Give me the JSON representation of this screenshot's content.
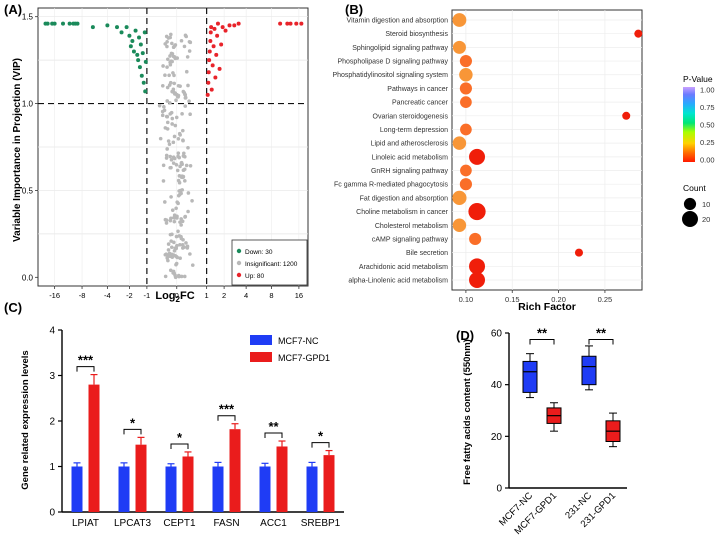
{
  "panels": {
    "a": "(A)",
    "b": "(B)",
    "c": "(C)",
    "d": "(D)"
  },
  "colors": {
    "down": "#1a8a5a",
    "insignificant": "#b8b8b8",
    "up": "#e8232a",
    "blue_bar": "#1f3cf5",
    "red_bar": "#ea1c1c"
  },
  "chart_data": [
    {
      "id": "A",
      "type": "scatter",
      "title": "",
      "xlabel_main": "Log",
      "xlabel_sub": "2",
      "xlabel_tail": "FC",
      "ylabel": "Variable Importance in Projection (VIP)",
      "x_ticks": [
        "-16",
        "-8",
        "-4",
        "-2",
        "-1",
        "0",
        "1",
        "2",
        "4",
        "8",
        "16"
      ],
      "y_ticks": [
        "0.0",
        "0.5",
        "1.0",
        "1.5"
      ],
      "ylim": [
        -0.05,
        1.55
      ],
      "vip_threshold": 1.0,
      "fc_thresholds": [
        -1,
        1
      ],
      "legend": [
        {
          "label": "Down: 30",
          "group": "down"
        },
        {
          "label": "Insignificant: 1200",
          "group": "insignificant"
        },
        {
          "label": "Up: 80",
          "group": "up"
        }
      ],
      "down_points": [
        [
          -20,
          1.46
        ],
        [
          -19,
          1.46
        ],
        [
          -17,
          1.46
        ],
        [
          -16,
          1.46
        ],
        [
          -13,
          1.46
        ],
        [
          -11,
          1.46
        ],
        [
          -10,
          1.46
        ],
        [
          -9.5,
          1.46
        ],
        [
          -9,
          1.46
        ],
        [
          -6,
          1.44
        ],
        [
          -4,
          1.45
        ],
        [
          -3,
          1.44
        ],
        [
          -2.6,
          1.41
        ],
        [
          -2.2,
          1.44
        ],
        [
          -2,
          1.39
        ],
        [
          -1.9,
          1.33
        ],
        [
          -1.8,
          1.36
        ],
        [
          -1.7,
          1.3
        ],
        [
          -1.6,
          1.42
        ],
        [
          -1.5,
          1.28
        ],
        [
          -1.45,
          1.25
        ],
        [
          -1.4,
          1.38
        ],
        [
          -1.35,
          1.21
        ],
        [
          -1.3,
          1.34
        ],
        [
          -1.25,
          1.16
        ],
        [
          -1.2,
          1.29
        ],
        [
          -1.15,
          1.12
        ],
        [
          -1.1,
          1.41
        ],
        [
          -1.08,
          1.07
        ],
        [
          -1.05,
          1.24
        ]
      ],
      "up_points": [
        [
          1.05,
          1.05
        ],
        [
          1.08,
          1.12
        ],
        [
          1.1,
          1.18
        ],
        [
          1.12,
          1.25
        ],
        [
          1.15,
          1.3
        ],
        [
          1.18,
          1.36
        ],
        [
          1.2,
          1.41
        ],
        [
          1.22,
          1.44
        ],
        [
          1.25,
          1.08
        ],
        [
          1.3,
          1.22
        ],
        [
          1.35,
          1.33
        ],
        [
          1.4,
          1.43
        ],
        [
          1.45,
          1.15
        ],
        [
          1.5,
          1.28
        ],
        [
          1.55,
          1.39
        ],
        [
          1.6,
          1.46
        ],
        [
          1.7,
          1.2
        ],
        [
          1.8,
          1.34
        ],
        [
          1.9,
          1.44
        ],
        [
          2.1,
          1.42
        ],
        [
          2.4,
          1.45
        ],
        [
          2.8,
          1.45
        ],
        [
          3.2,
          1.46
        ],
        [
          10,
          1.46
        ],
        [
          12,
          1.46
        ],
        [
          13,
          1.46
        ],
        [
          15,
          1.46
        ],
        [
          17,
          1.46
        ]
      ]
    },
    {
      "id": "B",
      "type": "bubble",
      "xlabel": "Rich Factor",
      "x_ticks": [
        "0.10",
        "0.15",
        "0.20",
        "0.25"
      ],
      "xlim": [
        0.085,
        0.29
      ],
      "legend_pvalue_title": "P-Value",
      "legend_pvalue_ticks": [
        "1.00",
        "0.75",
        "0.50",
        "0.25",
        "0.00"
      ],
      "legend_count_title": "Count",
      "legend_count_ticks": [
        "10",
        "20"
      ],
      "pathways": [
        {
          "name": "Vitamin digestion and absorption",
          "rich": 0.093,
          "count": 14,
          "p": 0.06
        },
        {
          "name": "Steroid biosynthesis",
          "rich": 0.286,
          "count": 3,
          "p": 0.02
        },
        {
          "name": "Sphingolipid signaling pathway",
          "rich": 0.093,
          "count": 12,
          "p": 0.06
        },
        {
          "name": "Phospholipase D signaling pathway",
          "rich": 0.1,
          "count": 10,
          "p": 0.05
        },
        {
          "name": "Phosphatidylinositol signaling system",
          "rich": 0.1,
          "count": 13,
          "p": 0.06
        },
        {
          "name": "Pathways in cancer",
          "rich": 0.1,
          "count": 10,
          "p": 0.05
        },
        {
          "name": "Pancreatic cancer",
          "rich": 0.1,
          "count": 9,
          "p": 0.05
        },
        {
          "name": "Ovarian steroidogenesis",
          "rich": 0.273,
          "count": 3,
          "p": 0.02
        },
        {
          "name": "Long-term depression",
          "rich": 0.1,
          "count": 9,
          "p": 0.05
        },
        {
          "name": "Lipid and atherosclerosis",
          "rich": 0.093,
          "count": 13,
          "p": 0.06
        },
        {
          "name": "Linoleic acid metabolism",
          "rich": 0.112,
          "count": 20,
          "p": 0.02
        },
        {
          "name": "GnRH signaling pathway",
          "rich": 0.1,
          "count": 9,
          "p": 0.05
        },
        {
          "name": "Fc gamma R-mediated phagocytosis",
          "rich": 0.1,
          "count": 10,
          "p": 0.05
        },
        {
          "name": "Fat digestion and absorption",
          "rich": 0.093,
          "count": 15,
          "p": 0.06
        },
        {
          "name": "Choline metabolism in cancer",
          "rich": 0.112,
          "count": 24,
          "p": 0.01
        },
        {
          "name": "Cholesterol metabolism",
          "rich": 0.093,
          "count": 13,
          "p": 0.06
        },
        {
          "name": "cAMP signaling pathway",
          "rich": 0.11,
          "count": 10,
          "p": 0.05
        },
        {
          "name": "Bile secretion",
          "rich": 0.222,
          "count": 3,
          "p": 0.02
        },
        {
          "name": "Arachidonic acid metabolism",
          "rich": 0.112,
          "count": 20,
          "p": 0.02
        },
        {
          "name": "alpha-Linolenic acid metabolism",
          "rich": 0.112,
          "count": 20,
          "p": 0.02
        }
      ]
    },
    {
      "id": "C",
      "type": "bar",
      "ylabel": "Gene related expression levels",
      "ylim": [
        0,
        4
      ],
      "y_ticks": [
        "0",
        "1",
        "2",
        "3",
        "4"
      ],
      "categories": [
        "LPIAT",
        "LPCAT3",
        "CEPT1",
        "FASN",
        "ACC1",
        "SREBP1"
      ],
      "series": [
        {
          "name": "MCF7-NC",
          "values": [
            1.0,
            1.0,
            1.0,
            1.0,
            1.0,
            1.0
          ],
          "errors": [
            0.08,
            0.08,
            0.06,
            0.09,
            0.07,
            0.09
          ]
        },
        {
          "name": "MCF7-GPD1",
          "values": [
            2.8,
            1.48,
            1.22,
            1.82,
            1.44,
            1.25
          ],
          "errors": [
            0.22,
            0.16,
            0.1,
            0.12,
            0.12,
            0.1
          ]
        }
      ],
      "significance": [
        "***",
        "*",
        "*",
        "***",
        "**",
        "*"
      ]
    },
    {
      "id": "D",
      "type": "box",
      "ylabel": "Free fatty acids content (550nm)",
      "ylim": [
        0,
        60
      ],
      "y_ticks": [
        "0",
        "20",
        "40",
        "60"
      ],
      "categories": [
        "MCF7-NC",
        "MCF7-GPD1",
        "231-NC",
        "231-GPD1"
      ],
      "boxes": [
        {
          "min": 35,
          "q1": 37,
          "median": 45,
          "q3": 49,
          "max": 52,
          "color": "blue"
        },
        {
          "min": 22,
          "q1": 25,
          "median": 28,
          "q3": 31,
          "max": 33,
          "color": "red"
        },
        {
          "min": 38,
          "q1": 40,
          "median": 47,
          "q3": 51,
          "max": 55,
          "color": "blue"
        },
        {
          "min": 16,
          "q1": 18,
          "median": 22,
          "q3": 26,
          "max": 29,
          "color": "red"
        }
      ],
      "significance": [
        "**",
        "**"
      ]
    }
  ]
}
